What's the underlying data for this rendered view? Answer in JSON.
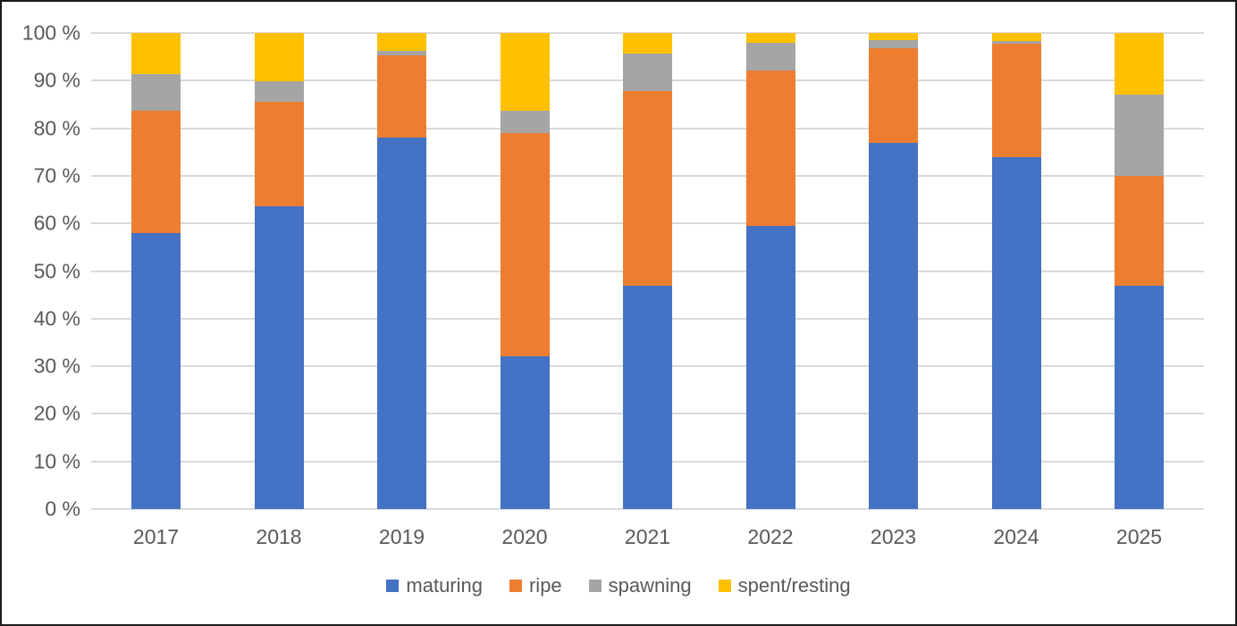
{
  "chart_data": {
    "type": "bar",
    "stacked": true,
    "stacked_mode": "percent",
    "title": "",
    "xlabel": "",
    "ylabel": "",
    "ylim": [
      0,
      100
    ],
    "grid": "horizontal-only",
    "legend_position": "bottom-center",
    "categories": [
      "2017",
      "2018",
      "2019",
      "2020",
      "2021",
      "2022",
      "2023",
      "2024",
      "2025"
    ],
    "series": [
      {
        "name": "maturing",
        "color": "#4472C4",
        "values": [
          58.0,
          63.6,
          78.1,
          32.0,
          47.0,
          59.5,
          77.0,
          74.0,
          47.0
        ]
      },
      {
        "name": "ripe",
        "color": "#ED7D31",
        "values": [
          25.6,
          22.0,
          17.2,
          46.9,
          40.9,
          32.7,
          19.8,
          23.8,
          23.0
        ]
      },
      {
        "name": "spawning",
        "color": "#A5A5A5",
        "values": [
          7.7,
          4.3,
          1.0,
          4.8,
          7.7,
          5.8,
          1.7,
          0.6,
          17.0
        ]
      },
      {
        "name": "spent/resting",
        "color": "#FFC000",
        "values": [
          8.7,
          10.1,
          3.7,
          16.3,
          4.4,
          2.0,
          1.5,
          1.6,
          13.0
        ]
      }
    ],
    "y_ticks": [
      "100 %",
      "90 %",
      "80 %",
      "70 %",
      "60 %",
      "50 %",
      "40 %",
      "30 %",
      "20 %",
      "10 %",
      "0 %"
    ],
    "colors": {
      "gridline": "#d9d9d9",
      "axis_text": "#595959",
      "background": "#ffffff",
      "border": "#1a1a1a"
    }
  }
}
